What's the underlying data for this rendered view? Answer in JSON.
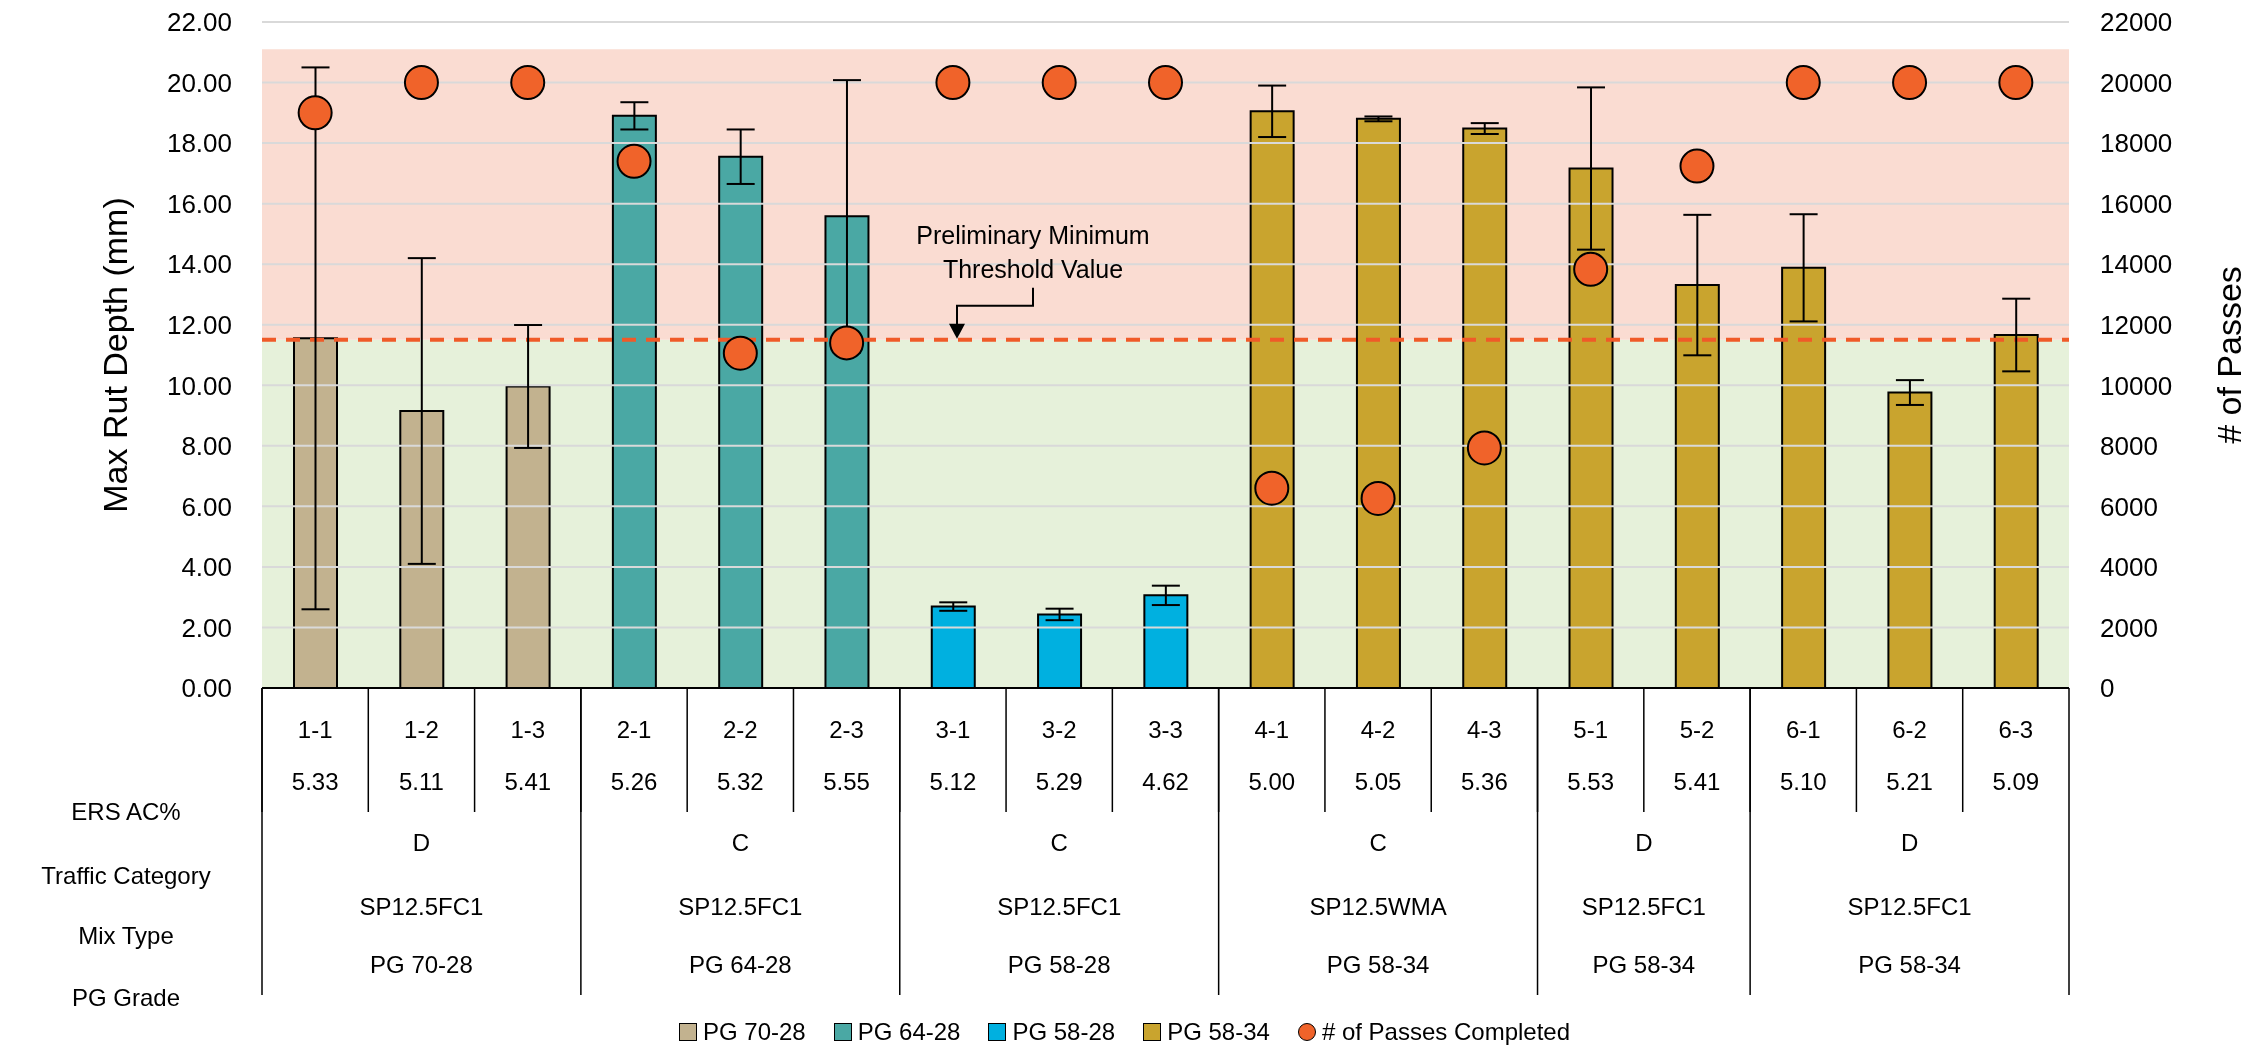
{
  "chart_data": {
    "type": "bar",
    "ylabel": "Max Rut Depth (mm)",
    "y2label": "# of Passes",
    "stacked": true,
    "legend": "bottom",
    "grid": "y",
    "categories": [
      "1-1",
      "1-2",
      "1-3",
      "2-1",
      "2-2",
      "2-3",
      "3-1",
      "3-2",
      "3-3",
      "4-1",
      "4-2",
      "4-3",
      "5-1",
      "5-2",
      "6-1",
      "6-2",
      "6-3"
    ],
    "ylim": [
      0,
      22
    ],
    "yticks": [
      {
        "value": 0,
        "label": "0.00"
      },
      {
        "value": 2,
        "label": "2.00"
      },
      {
        "value": 4,
        "label": "4.00"
      },
      {
        "value": 6,
        "label": "6.00"
      },
      {
        "value": 8,
        "label": "8.00"
      },
      {
        "value": 10,
        "label": "10.00"
      },
      {
        "value": 12,
        "label": "12.00"
      },
      {
        "value": 14,
        "label": "14.00"
      },
      {
        "value": 16,
        "label": "16.00"
      },
      {
        "value": 18,
        "label": "18.00"
      },
      {
        "value": 20,
        "label": "20.00"
      },
      {
        "value": 22,
        "label": "22.00"
      }
    ],
    "y2lim": [
      0,
      22000
    ],
    "y2ticks": [
      0,
      2000,
      4000,
      6000,
      8000,
      10000,
      12000,
      14000,
      16000,
      18000,
      20000,
      22000
    ],
    "series": [
      {
        "name": "PG 70-28",
        "color": "#c2b28f",
        "values": [
          11.55,
          9.15,
          9.96,
          null,
          null,
          null,
          null,
          null,
          null,
          null,
          null,
          null,
          null,
          null,
          null,
          null,
          null
        ],
        "errors": [
          8.95,
          5.05,
          2.03,
          null,
          null,
          null,
          null,
          null,
          null,
          null,
          null,
          null,
          null,
          null,
          null,
          null,
          null
        ]
      },
      {
        "name": "PG 64-28",
        "color": "#4aa8a4",
        "values": [
          null,
          null,
          null,
          18.9,
          17.55,
          15.58,
          null,
          null,
          null,
          null,
          null,
          null,
          null,
          null,
          null,
          null,
          null
        ],
        "errors": [
          null,
          null,
          null,
          0.45,
          0.9,
          4.5,
          null,
          null,
          null,
          null,
          null,
          null,
          null,
          null,
          null,
          null,
          null
        ]
      },
      {
        "name": "PG 58-28",
        "color": "#00b0e0",
        "values": [
          null,
          null,
          null,
          null,
          null,
          null,
          2.69,
          2.43,
          3.06,
          null,
          null,
          null,
          null,
          null,
          null,
          null,
          null
        ],
        "errors": [
          null,
          null,
          null,
          null,
          null,
          null,
          0.14,
          0.19,
          0.32,
          null,
          null,
          null,
          null,
          null,
          null,
          null,
          null
        ]
      },
      {
        "name": "PG 58-34",
        "color": "#c9a42e",
        "values": [
          null,
          null,
          null,
          null,
          null,
          null,
          null,
          null,
          null,
          19.05,
          18.8,
          18.48,
          17.16,
          13.31,
          13.88,
          9.76,
          11.66
        ],
        "errors": [
          null,
          null,
          null,
          null,
          null,
          null,
          null,
          null,
          null,
          0.85,
          0.08,
          0.18,
          2.68,
          2.32,
          1.77,
          0.41,
          1.2
        ]
      },
      {
        "name": "# of Passes Completed",
        "type": "scatter",
        "axis": "y2",
        "marker": "circle",
        "color": "#f0632a",
        "x": [
          "1-1",
          "1-2",
          "1-3",
          "2-1",
          "2-2",
          "2-3",
          "3-1",
          "3-2",
          "3-3",
          "4-1",
          "4-2",
          "4-3",
          "5-1",
          "5-2",
          "6-1",
          "6-2",
          "6-3"
        ],
        "values": [
          19000,
          20000,
          20000,
          17400,
          11060,
          11400,
          20000,
          20000,
          20000,
          6600,
          6260,
          7930,
          13830,
          17240,
          20000,
          20000,
          20000
        ]
      }
    ],
    "bands": [
      {
        "axis": "y",
        "from": 0,
        "to": 11.5,
        "color": "#e6f1da"
      },
      {
        "axis": "y",
        "from": 11.5,
        "to": 21.1,
        "color": "#fadcd2"
      }
    ],
    "ref_lines": [
      {
        "axis": "y",
        "value": 11.5,
        "label": "Preliminary Minimum Threshold Value",
        "color": "#f05a28",
        "line_style": "dashed"
      }
    ],
    "annotations": [
      "ERS AC%",
      "Traffic Category",
      "Mix Type",
      "PG Grade",
      "5.33",
      "5.11",
      "5.41",
      "5.26",
      "5.32",
      "5.55",
      "5.12",
      "5.29",
      "4.62",
      "5.00",
      "5.05",
      "5.36",
      "5.53",
      "5.41",
      "5.10",
      "5.21",
      "5.09",
      "D",
      "SP12.5FC1",
      "PG 70-28",
      "C",
      "SP12.5FC1",
      "PG 64-28",
      "C",
      "SP12.5FC1",
      "PG 58-28",
      "C",
      "SP12.5WMA",
      "PG 58-34",
      "D",
      "SP12.5FC1",
      "PG 58-34",
      "D",
      "SP12.5FC1",
      "PG 58-34"
    ]
  }
}
